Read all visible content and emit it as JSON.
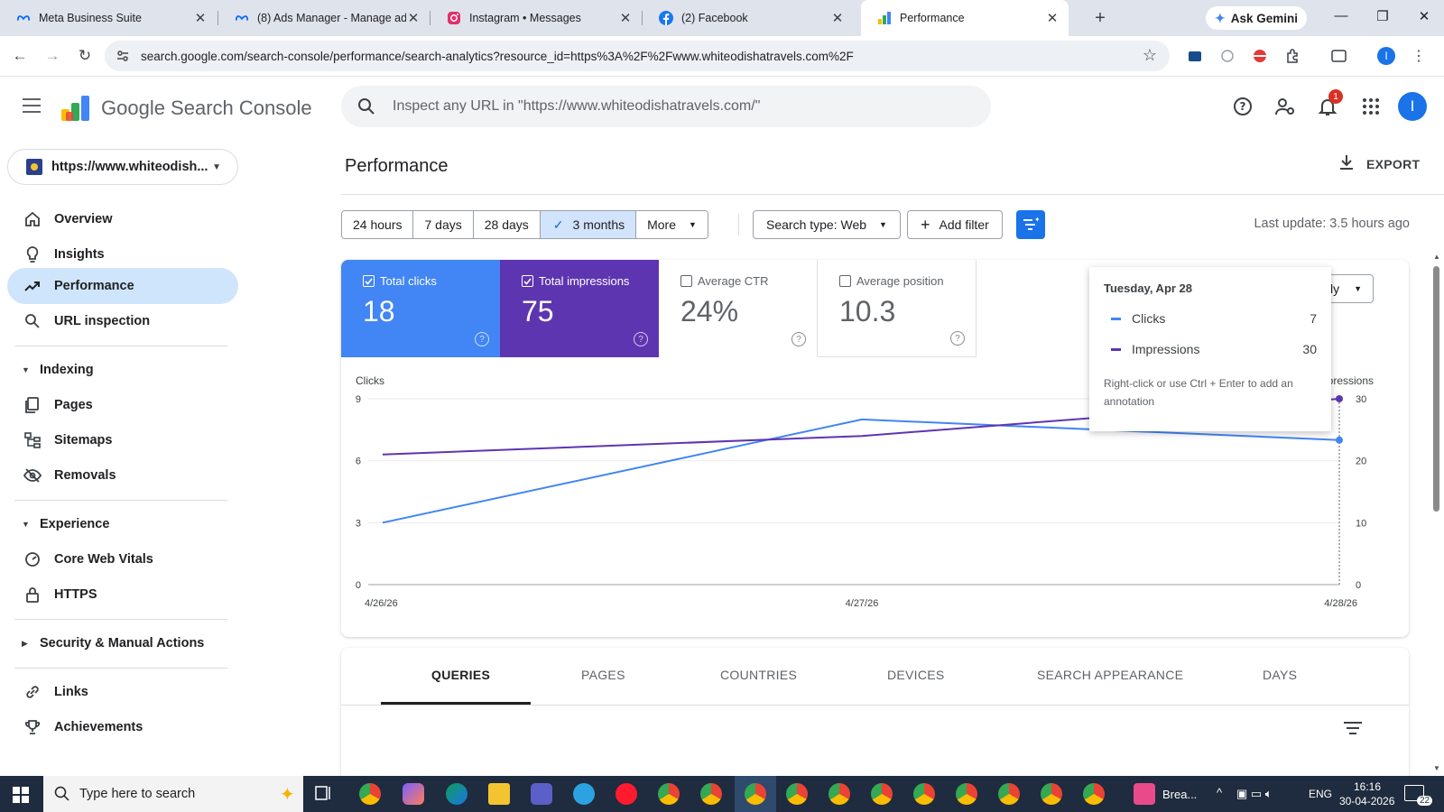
{
  "browser": {
    "tabs": [
      {
        "title": "Meta Business Suite",
        "icon": "meta-icon"
      },
      {
        "title": "(8) Ads Manager - Manage ads",
        "icon": "meta-icon"
      },
      {
        "title": "Instagram • Messages",
        "icon": "instagram-icon"
      },
      {
        "title": "(2) Facebook",
        "icon": "facebook-icon"
      },
      {
        "title": "Performance",
        "icon": "search-console-icon",
        "active": true
      }
    ],
    "ask_gemini": "Ask Gemini",
    "url": "search.google.com/search-console/performance/search-analytics?resource_id=https%3A%2F%2Fwww.whiteodishatravels.com%2F"
  },
  "header": {
    "product": "Google Search Console",
    "inspect_placeholder": "Inspect any URL in \"https://www.whiteodishatravels.com/\"",
    "notification_count": "1",
    "avatar_letter": "I"
  },
  "sidebar": {
    "property": "https://www.whiteodish...",
    "items": [
      {
        "label": "Overview",
        "icon": "home-icon"
      },
      {
        "label": "Insights",
        "icon": "lightbulb-icon"
      },
      {
        "label": "Performance",
        "icon": "trending-icon",
        "active": true
      },
      {
        "label": "URL inspection",
        "icon": "search-icon"
      }
    ],
    "indexing": {
      "label": "Indexing",
      "items": [
        {
          "label": "Pages",
          "icon": "pages-icon"
        },
        {
          "label": "Sitemaps",
          "icon": "sitemap-icon"
        },
        {
          "label": "Removals",
          "icon": "eye-off-icon"
        }
      ]
    },
    "experience": {
      "label": "Experience",
      "items": [
        {
          "label": "Core Web Vitals",
          "icon": "speed-icon"
        },
        {
          "label": "HTTPS",
          "icon": "lock-icon"
        }
      ]
    },
    "security": "Security & Manual Actions",
    "links": "Links",
    "achievements": "Achievements"
  },
  "main": {
    "title": "Performance",
    "export": "EXPORT",
    "date_ranges": [
      "24 hours",
      "7 days",
      "28 days",
      "3 months",
      "More"
    ],
    "selected_range": "3 months",
    "search_type": "Search type: Web",
    "add_filter": "Add filter",
    "last_update": "Last update: 3.5 hours ago",
    "metrics": {
      "clicks": {
        "label": "Total clicks",
        "value": "18"
      },
      "impressions": {
        "label": "Total impressions",
        "value": "75"
      },
      "ctr": {
        "label": "Average CTR",
        "value": "24%"
      },
      "position": {
        "label": "Average position",
        "value": "10.3"
      }
    },
    "granularity": "Daily",
    "tooltip": {
      "date": "Tuesday, Apr 28",
      "rows": [
        {
          "name": "Clicks",
          "value": "7"
        },
        {
          "name": "Impressions",
          "value": "30"
        }
      ],
      "note": "Right-click or use Ctrl + Enter to add an annotation"
    },
    "dim_tabs": [
      "QUERIES",
      "PAGES",
      "COUNTRIES",
      "DEVICES",
      "SEARCH APPEARANCE",
      "DAYS"
    ]
  },
  "chart_data": {
    "type": "line",
    "x": [
      "4/26/26",
      "4/27/26",
      "4/28/26"
    ],
    "series": [
      {
        "name": "Clicks",
        "values": [
          3,
          8,
          7
        ],
        "color": "#4285f4",
        "axis": "left"
      },
      {
        "name": "Impressions",
        "values": [
          21,
          24,
          30
        ],
        "color": "#5e35b1",
        "axis": "right"
      }
    ],
    "ylabel_left": "Clicks",
    "ylabel_right": "Impressions",
    "left_ticks": [
      0,
      3,
      6,
      9
    ],
    "right_ticks": [
      0,
      10,
      20,
      30
    ],
    "ylim_left": [
      0,
      9
    ],
    "ylim_right": [
      0,
      30
    ],
    "grid": true
  },
  "taskbar": {
    "search_placeholder": "Type here to search",
    "app_label": "Brea...",
    "lang": "ENG",
    "time": "16:16",
    "date": "30-04-2026",
    "notifications": "22"
  },
  "colors": {
    "clicks": "#4285f4",
    "impressions": "#5e35b1",
    "accent": "#1a73e8",
    "active_nav": "#cfe5fb"
  }
}
